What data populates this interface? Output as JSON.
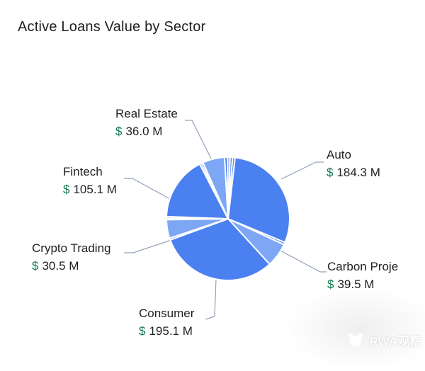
{
  "header": {
    "title": "Active Loans Value by Sector"
  },
  "watermark": {
    "text": "RWA观察"
  },
  "chart_data": {
    "type": "pie",
    "title": "Active Loans Value by Sector",
    "value_unit_suffix": "M",
    "currency_symbol": "$",
    "colors": {
      "medium_blue": "#4a80f0",
      "light_blue": "#7da7f5",
      "divider": "#ffffff",
      "leader_line": "#94a0b8",
      "dollar_green": "#0f7a4e",
      "label_text": "#202124",
      "title_text": "#1e1f21"
    },
    "slices": [
      {
        "label": "Auto",
        "value": 184.3,
        "shade": "medium_blue",
        "unlabeled": false
      },
      {
        "label": "",
        "value": 4.0,
        "shade": "medium_blue",
        "unlabeled": true
      },
      {
        "label": "Carbon Proje",
        "value": 39.5,
        "shade": "light_blue",
        "unlabeled": false
      },
      {
        "label": "Consumer",
        "value": 195.1,
        "shade": "medium_blue",
        "unlabeled": false
      },
      {
        "label": "",
        "value": 3.0,
        "shade": "medium_blue",
        "unlabeled": true
      },
      {
        "label": "Crypto Trading",
        "value": 30.5,
        "shade": "light_blue",
        "unlabeled": false
      },
      {
        "label": "",
        "value": 2.5,
        "shade": "medium_blue",
        "unlabeled": true
      },
      {
        "label": "",
        "value": 2.5,
        "shade": "medium_blue",
        "unlabeled": true
      },
      {
        "label": "Fintech",
        "value": 105.1,
        "shade": "medium_blue",
        "unlabeled": false
      },
      {
        "label": "",
        "value": 3.0,
        "shade": "medium_blue",
        "unlabeled": true
      },
      {
        "label": "",
        "value": 3.0,
        "shade": "medium_blue",
        "unlabeled": true
      },
      {
        "label": "Real Estate",
        "value": 36.0,
        "shade": "light_blue",
        "unlabeled": false
      },
      {
        "label": "",
        "value": 5.0,
        "shade": "medium_blue",
        "unlabeled": true
      },
      {
        "label": "",
        "value": 4.0,
        "shade": "light_blue",
        "unlabeled": true
      },
      {
        "label": "",
        "value": 4.0,
        "shade": "medium_blue",
        "unlabeled": true
      },
      {
        "label": "",
        "value": 4.0,
        "shade": "medium_blue",
        "unlabeled": true
      }
    ],
    "labels": [
      {
        "id": "real-estate",
        "name": "Real Estate",
        "currency": "$",
        "value": "36.0 M"
      },
      {
        "id": "auto",
        "name": "Auto",
        "currency": "$",
        "value": "184.3 M"
      },
      {
        "id": "fintech",
        "name": "Fintech",
        "currency": "$",
        "value": "105.1 M"
      },
      {
        "id": "crypto-trading",
        "name": "Crypto Trading",
        "currency": "$",
        "value": "30.5 M"
      },
      {
        "id": "consumer",
        "name": "Consumer",
        "currency": "$",
        "value": "195.1 M"
      },
      {
        "id": "carbon",
        "name": "Carbon Proje",
        "currency": "$",
        "value": "39.5 M"
      }
    ]
  }
}
